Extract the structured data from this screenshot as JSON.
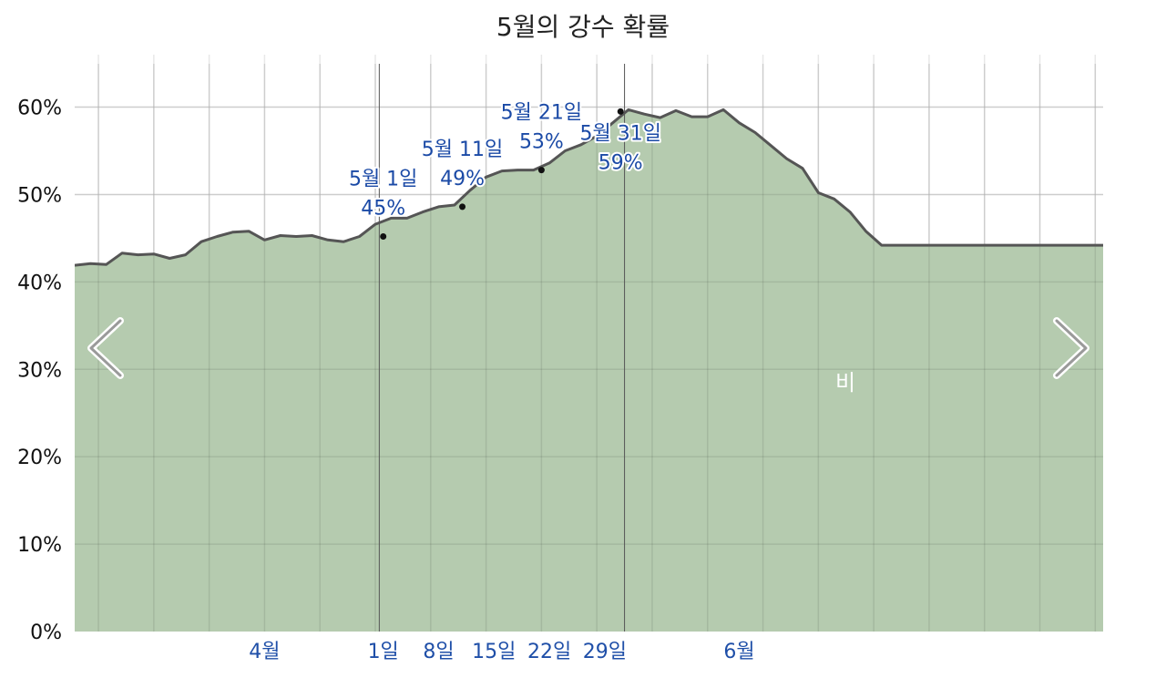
{
  "chart_data": {
    "type": "area",
    "title": "5월의 강수 확률",
    "ylim": [
      0,
      66
    ],
    "y_ticks": [
      "0%",
      "10%",
      "20%",
      "30%",
      "40%",
      "50%",
      "60%"
    ],
    "y_tick_values": [
      0,
      10,
      20,
      30,
      40,
      50,
      60
    ],
    "x_range": [
      -38,
      92
    ],
    "x_ticks": [
      {
        "label": "4월",
        "x": -14
      },
      {
        "label": "1일",
        "x": 1
      },
      {
        "label": "8일",
        "x": 8
      },
      {
        "label": "15일",
        "x": 15
      },
      {
        "label": "22일",
        "x": 22
      },
      {
        "label": "29일",
        "x": 29
      },
      {
        "label": "6월",
        "x": 46
      }
    ],
    "series": [
      {
        "name": "비",
        "color": "#b5cbaf",
        "x": [
          -38,
          -36,
          -34,
          -32,
          -30,
          -28,
          -26,
          -24,
          -22,
          -20,
          -18,
          -16,
          -14,
          -12,
          -10,
          -8,
          -6,
          -4,
          -2,
          0,
          2,
          4,
          6,
          8,
          10,
          12,
          14,
          16,
          18,
          20,
          22,
          24,
          26,
          28,
          30,
          32,
          34,
          36,
          38,
          40,
          42,
          44,
          46,
          48,
          50,
          52,
          54,
          56,
          58,
          60,
          62,
          64,
          66,
          68,
          70,
          72,
          74,
          76,
          78,
          80,
          82,
          84,
          86,
          88,
          90,
          92
        ],
        "values": [
          41.9,
          42.1,
          42.0,
          43.3,
          43.1,
          43.2,
          42.7,
          43.1,
          44.6,
          45.2,
          45.7,
          45.8,
          44.8,
          45.3,
          45.2,
          45.3,
          44.8,
          44.6,
          45.2,
          46.6,
          47.3,
          47.3,
          48.0,
          48.6,
          48.8,
          50.5,
          52.0,
          52.7,
          52.8,
          52.8,
          53.6,
          55.0,
          55.7,
          56.7,
          58.2,
          59.7,
          59.2,
          58.8,
          59.6,
          58.9,
          58.9,
          59.7,
          58.2,
          57.1,
          55.6,
          54.1,
          53.0,
          50.2,
          49.5,
          48.0,
          45.8,
          44.2,
          44.2,
          44.2,
          44.2,
          44.2,
          44.2,
          44.2,
          44.2,
          44.2,
          44.2,
          44.2,
          44.2,
          44.2,
          44.2,
          44.2
        ]
      }
    ],
    "annotations": [
      {
        "date": "5월 1일",
        "value_label": "45%",
        "x": 1,
        "y": 45.2
      },
      {
        "date": "5월 11일",
        "value_label": "49%",
        "x": 11,
        "y": 48.6
      },
      {
        "date": "5월 21일",
        "value_label": "53%",
        "x": 21,
        "y": 52.8
      },
      {
        "date": "5월 31일",
        "value_label": "59%",
        "x": 31,
        "y": 59.5
      }
    ],
    "area_label": "비",
    "line_color": "#555555",
    "grid": true,
    "legend": "none"
  },
  "nav": {
    "prev_icon": "chevron-left-icon",
    "next_icon": "chevron-right-icon"
  }
}
